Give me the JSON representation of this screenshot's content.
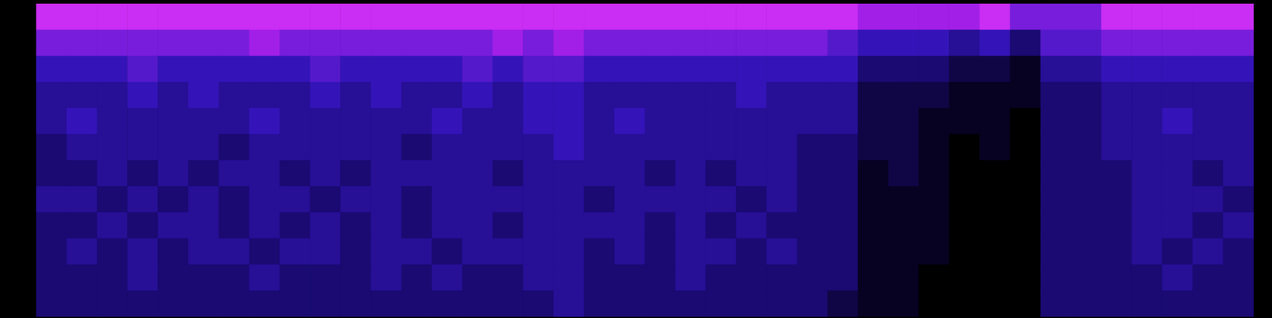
{
  "chart_data": {
    "type": "heatmap",
    "tick_labels": false,
    "grid": false,
    "zlim": [
      0,
      10
    ],
    "cells": [
      [
        9,
        7,
        5,
        4,
        4,
        3,
        3,
        4,
        3,
        3,
        3,
        3
      ],
      [
        9,
        7,
        5,
        4,
        5,
        4,
        3,
        4,
        3,
        4,
        3,
        3
      ],
      [
        9,
        7,
        5,
        4,
        4,
        4,
        4,
        3,
        4,
        3,
        3,
        3
      ],
      [
        9,
        7,
        6,
        5,
        4,
        4,
        3,
        4,
        3,
        4,
        4,
        3
      ],
      [
        9,
        7,
        5,
        4,
        4,
        4,
        4,
        3,
        4,
        3,
        3,
        3
      ],
      [
        9,
        7,
        5,
        5,
        4,
        4,
        3,
        4,
        4,
        4,
        3,
        3
      ],
      [
        9,
        7,
        5,
        4,
        4,
        3,
        4,
        3,
        3,
        4,
        3,
        3
      ],
      [
        9,
        8,
        5,
        4,
        5,
        4,
        4,
        4,
        4,
        3,
        4,
        3
      ],
      [
        9,
        7,
        5,
        4,
        4,
        4,
        3,
        4,
        3,
        4,
        3,
        3
      ],
      [
        9,
        7,
        6,
        5,
        4,
        4,
        4,
        3,
        4,
        4,
        3,
        3
      ],
      [
        9,
        7,
        5,
        4,
        4,
        4,
        3,
        4,
        3,
        3,
        3,
        3
      ],
      [
        9,
        7,
        5,
        5,
        4,
        4,
        4,
        4,
        4,
        4,
        4,
        3
      ],
      [
        9,
        7,
        5,
        4,
        4,
        3,
        4,
        3,
        3,
        4,
        3,
        3
      ],
      [
        9,
        7,
        5,
        4,
        5,
        4,
        4,
        4,
        4,
        3,
        4,
        3
      ],
      [
        9,
        7,
        6,
        5,
        4,
        4,
        4,
        4,
        4,
        4,
        3,
        3
      ],
      [
        9,
        8,
        5,
        4,
        4,
        4,
        3,
        4,
        3,
        4,
        3,
        3
      ],
      [
        9,
        7,
        6,
        5,
        5,
        4,
        4,
        4,
        4,
        4,
        4,
        3
      ],
      [
        9,
        8,
        6,
        5,
        5,
        5,
        4,
        4,
        4,
        4,
        4,
        4
      ],
      [
        9,
        7,
        5,
        4,
        4,
        4,
        4,
        3,
        4,
        3,
        3,
        3
      ],
      [
        9,
        7,
        5,
        4,
        5,
        4,
        4,
        4,
        4,
        4,
        3,
        3
      ],
      [
        9,
        7,
        5,
        4,
        4,
        4,
        3,
        4,
        3,
        3,
        3,
        3
      ],
      [
        9,
        7,
        5,
        4,
        4,
        4,
        4,
        4,
        4,
        4,
        4,
        3
      ],
      [
        9,
        7,
        5,
        4,
        4,
        4,
        3,
        4,
        3,
        4,
        3,
        3
      ],
      [
        9,
        7,
        5,
        5,
        4,
        4,
        4,
        3,
        4,
        3,
        3,
        3
      ],
      [
        9,
        7,
        5,
        4,
        4,
        4,
        4,
        4,
        3,
        4,
        3,
        3
      ],
      [
        9,
        7,
        5,
        4,
        4,
        3,
        3,
        3,
        3,
        3,
        3,
        3
      ],
      [
        9,
        6,
        5,
        4,
        4,
        3,
        3,
        3,
        3,
        3,
        3,
        2
      ],
      [
        8,
        5,
        3,
        2,
        2,
        2,
        1,
        1,
        1,
        1,
        1,
        1
      ],
      [
        8,
        5,
        3,
        2,
        2,
        2,
        2,
        1,
        1,
        1,
        1,
        1
      ],
      [
        8,
        5,
        3,
        2,
        1,
        1,
        1,
        1,
        1,
        1,
        0,
        0
      ],
      [
        8,
        4,
        2,
        1,
        1,
        0,
        0,
        0,
        0,
        0,
        0,
        0
      ],
      [
        9,
        5,
        2,
        1,
        1,
        1,
        0,
        0,
        0,
        0,
        0,
        0
      ],
      [
        7,
        3,
        1,
        1,
        0,
        0,
        0,
        0,
        0,
        0,
        0,
        0
      ],
      [
        7,
        6,
        4,
        3,
        3,
        3,
        3,
        3,
        3,
        3,
        3,
        3
      ],
      [
        7,
        6,
        4,
        3,
        3,
        3,
        3,
        3,
        3,
        3,
        3,
        3
      ],
      [
        9,
        7,
        5,
        4,
        4,
        4,
        3,
        3,
        3,
        3,
        3,
        3
      ],
      [
        9,
        7,
        5,
        4,
        4,
        4,
        4,
        4,
        4,
        4,
        3,
        3
      ],
      [
        9,
        7,
        5,
        4,
        5,
        4,
        4,
        4,
        4,
        3,
        4,
        3
      ],
      [
        9,
        7,
        5,
        4,
        4,
        4,
        3,
        4,
        3,
        4,
        3,
        3
      ],
      [
        9,
        7,
        5,
        4,
        4,
        4,
        4,
        3,
        4,
        3,
        3,
        3
      ]
    ]
  }
}
